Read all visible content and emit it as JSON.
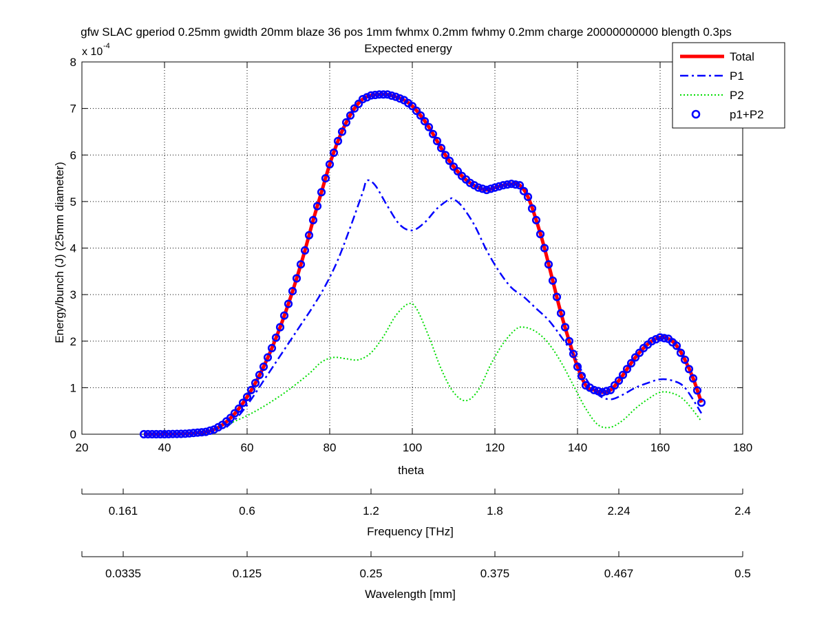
{
  "chart_data": {
    "type": "line",
    "title": "gfw SLAC gperiod 0.25mm gwidth 20mm blaze 36 pos 1mm fwhmx 0.2mm fwhmy 0.2mm charge 20000000000 blength 0.3ps",
    "subtitle": "Expected energy",
    "xlabel": "theta",
    "ylabel": "Energy/bunch (J) (25mm diameter)",
    "y_multiplier": {
      "base": "x 10",
      "exponent": "-4"
    },
    "xlim": [
      20,
      180
    ],
    "ylim": [
      0,
      8
    ],
    "x_ticks": [
      "20",
      "40",
      "60",
      "80",
      "100",
      "120",
      "140",
      "160",
      "180"
    ],
    "y_ticks": [
      "0",
      "1",
      "2",
      "3",
      "4",
      "5",
      "6",
      "7",
      "8"
    ],
    "grid": true,
    "legend_position": "top-right",
    "series": [
      {
        "name": "Total",
        "color": "#ff0000",
        "style": "solid",
        "x": [
          35,
          40,
          45,
          50,
          52,
          54,
          56,
          58,
          60,
          62,
          64,
          66,
          68,
          70,
          72,
          74,
          76,
          78,
          80,
          82,
          84,
          86,
          88,
          90,
          92,
          94,
          96,
          98,
          100,
          102,
          104,
          106,
          108,
          110,
          112,
          114,
          116,
          118,
          120,
          122,
          124,
          126,
          128,
          130,
          132,
          134,
          136,
          138,
          140,
          142,
          144,
          146,
          148,
          150,
          152,
          154,
          156,
          158,
          160,
          162,
          164,
          166,
          168,
          170
        ],
        "values": [
          0,
          0,
          0.01,
          0.05,
          0.1,
          0.2,
          0.35,
          0.55,
          0.8,
          1.1,
          1.45,
          1.85,
          2.3,
          2.8,
          3.35,
          3.95,
          4.6,
          5.2,
          5.8,
          6.3,
          6.7,
          7.0,
          7.2,
          7.28,
          7.3,
          7.3,
          7.25,
          7.18,
          7.05,
          6.85,
          6.6,
          6.3,
          6.0,
          5.75,
          5.55,
          5.4,
          5.3,
          5.25,
          5.3,
          5.35,
          5.38,
          5.35,
          5.1,
          4.6,
          4.0,
          3.3,
          2.6,
          2.0,
          1.45,
          1.05,
          0.95,
          0.9,
          0.95,
          1.15,
          1.4,
          1.65,
          1.85,
          2.0,
          2.08,
          2.05,
          1.9,
          1.6,
          1.2,
          0.68
        ]
      },
      {
        "name": "P1",
        "color": "#0000ff",
        "style": "dashdot",
        "x": [
          55,
          58,
          61,
          64,
          67,
          70,
          73,
          76,
          79,
          82,
          85,
          88,
          89,
          91,
          94,
          97,
          100,
          103,
          106,
          109,
          110,
          112,
          115,
          118,
          121,
          124,
          127,
          130,
          133,
          136,
          139,
          142,
          145,
          148,
          151,
          154,
          157,
          160,
          163,
          166,
          170
        ],
        "values": [
          0.15,
          0.4,
          0.75,
          1.15,
          1.55,
          1.95,
          2.35,
          2.75,
          3.2,
          3.75,
          4.45,
          5.2,
          5.45,
          5.35,
          4.9,
          4.5,
          4.38,
          4.55,
          4.85,
          5.05,
          5.05,
          4.9,
          4.5,
          3.95,
          3.5,
          3.15,
          2.95,
          2.7,
          2.45,
          2.1,
          1.7,
          1.2,
          0.85,
          0.75,
          0.85,
          1.0,
          1.1,
          1.18,
          1.15,
          1.0,
          0.45
        ]
      },
      {
        "name": "P2",
        "color": "#00dd00",
        "style": "dotted",
        "x": [
          55,
          60,
          65,
          70,
          75,
          78,
          81,
          84,
          87,
          90,
          93,
          96,
          99,
          101,
          104,
          107,
          110,
          113,
          116,
          119,
          122,
          125,
          127,
          130,
          133,
          136,
          139,
          142,
          145,
          148,
          151,
          154,
          157,
          160,
          163,
          166,
          170
        ],
        "values": [
          0.2,
          0.4,
          0.65,
          0.95,
          1.3,
          1.55,
          1.65,
          1.62,
          1.6,
          1.75,
          2.1,
          2.55,
          2.8,
          2.7,
          2.1,
          1.4,
          0.9,
          0.72,
          0.95,
          1.5,
          1.95,
          2.25,
          2.3,
          2.2,
          1.95,
          1.55,
          1.05,
          0.55,
          0.2,
          0.15,
          0.3,
          0.55,
          0.75,
          0.9,
          0.88,
          0.72,
          0.28
        ]
      },
      {
        "name": "p1+P2",
        "color": "#0000ff",
        "style": "circles",
        "x_start": 35,
        "x_end": 170,
        "x_step": 1
      }
    ],
    "secondary_axes": [
      {
        "label": "Frequency [THz]",
        "tick_labels": [
          "0.161",
          "0.6",
          "1.2",
          "1.8",
          "2.24",
          "2.4"
        ]
      },
      {
        "label": "Wavelength [mm]",
        "tick_labels": [
          "0.0335",
          "0.125",
          "0.25",
          "0.375",
          "0.467",
          "0.5"
        ]
      }
    ]
  }
}
